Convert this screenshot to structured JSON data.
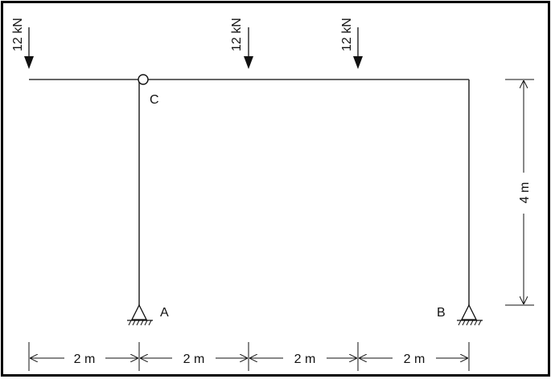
{
  "loads": [
    {
      "label": "12 kN"
    },
    {
      "label": "12 kN"
    },
    {
      "label": "12 kN"
    }
  ],
  "nodes": {
    "hinge": "C",
    "support_left": "A",
    "support_right": "B"
  },
  "dimensions": {
    "spans": [
      "2 m",
      "2 m",
      "2 m",
      "2 m"
    ],
    "height": "4 m"
  },
  "colors": {
    "line": "#111111",
    "border": "#000000"
  }
}
